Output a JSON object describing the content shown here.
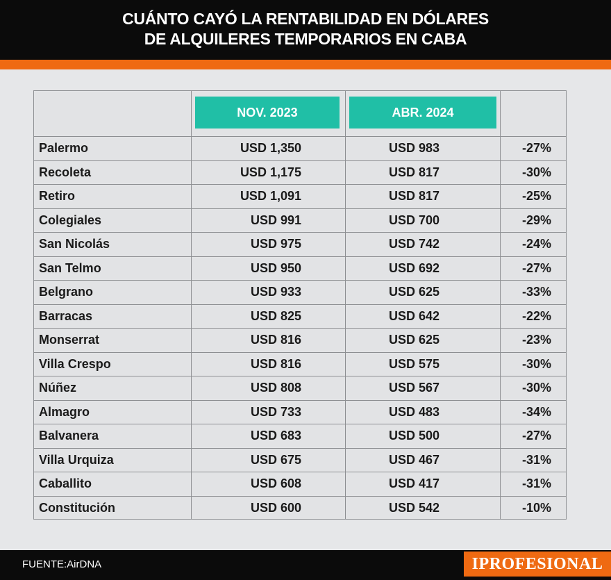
{
  "title_line1": "CUÁNTO CAYÓ LA RENTABILIDAD EN DÓLARES",
  "title_line2": "DE ALQUILERES TEMPORARIOS EN CABA",
  "source": "FUENTE:AirDNA",
  "brand": "IPROFESIONAL",
  "colors": {
    "accent": "#ef6a12",
    "header_pill": "#20bfa6",
    "background": "#e6e7e9",
    "bar": "#0b0b0b"
  },
  "chart_data": {
    "type": "table",
    "columns": [
      "",
      "NOV. 2023",
      "ABR. 2024",
      ""
    ],
    "rows": [
      [
        "Palermo",
        "USD 1,350",
        "USD 983",
        "-27%"
      ],
      [
        "Recoleta",
        "USD 1,175",
        "USD 817",
        "-30%"
      ],
      [
        "Retiro",
        "USD 1,091",
        "USD 817",
        "-25%"
      ],
      [
        "Colegiales",
        "USD 991",
        "USD 700",
        "-29%"
      ],
      [
        "San Nicolás",
        "USD 975",
        "USD 742",
        "-24%"
      ],
      [
        "San Telmo",
        "USD 950",
        "USD 692",
        "-27%"
      ],
      [
        "Belgrano",
        "USD 933",
        "USD 625",
        "-33%"
      ],
      [
        "Barracas",
        "USD 825",
        "USD 642",
        "-22%"
      ],
      [
        "Monserrat",
        "USD 816",
        "USD 625",
        "-23%"
      ],
      [
        "Villa Crespo",
        "USD 816",
        "USD 575",
        "-30%"
      ],
      [
        "Núñez",
        "USD 808",
        "USD 567",
        "-30%"
      ],
      [
        "Almagro",
        "USD 733",
        "USD 483",
        "-34%"
      ],
      [
        "Balvanera",
        "USD 683",
        "USD 500",
        "-27%"
      ],
      [
        "Villa Urquiza",
        "USD 675",
        "USD 467",
        "-31%"
      ],
      [
        "Caballito",
        "USD 608",
        "USD 417",
        "-31%"
      ],
      [
        "Constitución",
        "USD 600",
        "USD 542",
        "-10%"
      ]
    ]
  }
}
